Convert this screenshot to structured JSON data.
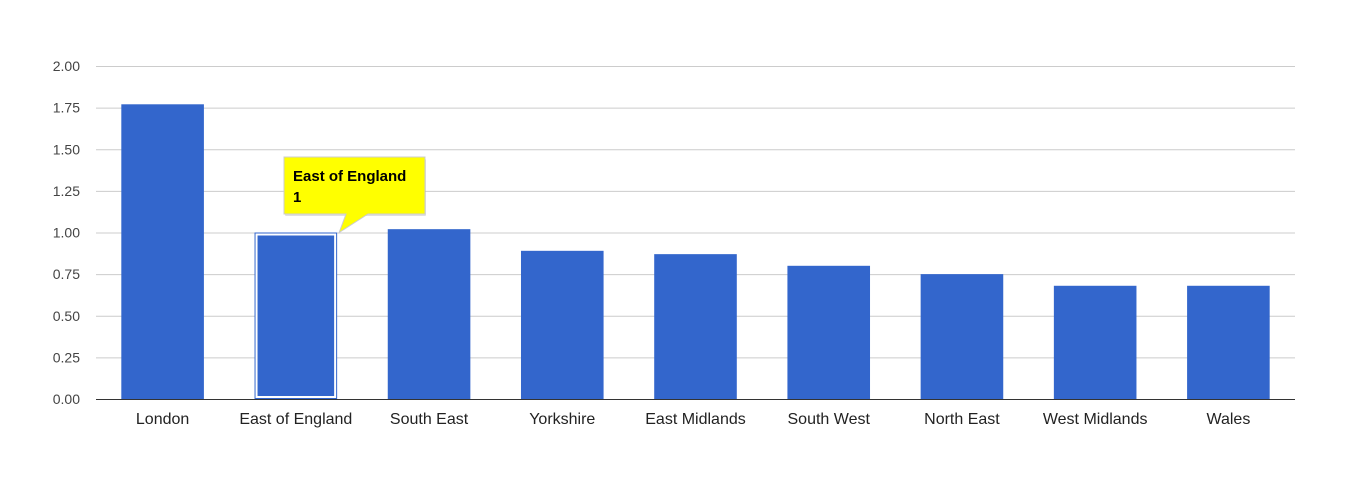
{
  "chart_data": {
    "type": "bar",
    "categories": [
      "London",
      "East of England",
      "South East",
      "Yorkshire",
      "East Midlands",
      "South West",
      "North East",
      "West Midlands",
      "Wales"
    ],
    "values": [
      1.77,
      1.0,
      1.02,
      0.89,
      0.87,
      0.8,
      0.75,
      0.68,
      0.68
    ],
    "ylim": [
      0,
      2.0
    ],
    "yticks": [
      "0.00",
      "0.25",
      "0.50",
      "0.75",
      "1.00",
      "1.25",
      "1.50",
      "1.75",
      "2.00"
    ],
    "grid": true,
    "bar_color": "#3366cc",
    "highlighted_index": 1,
    "tooltip": {
      "title": "East of England",
      "value": "1",
      "background": "#ffff00"
    }
  }
}
